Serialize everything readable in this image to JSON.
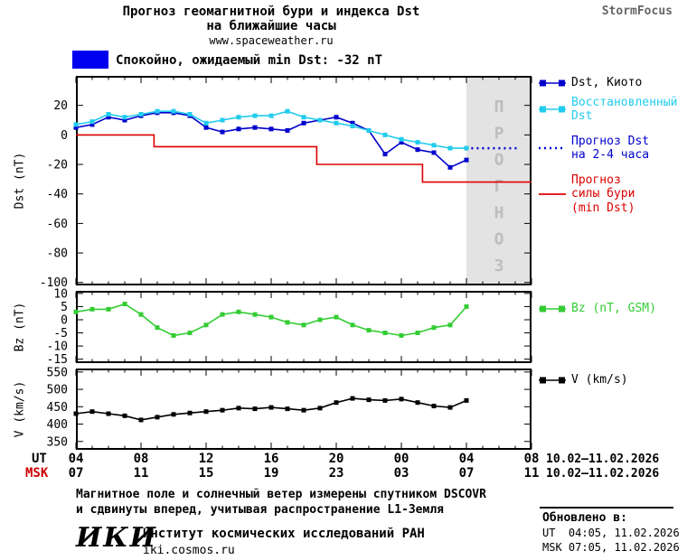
{
  "header": {
    "title_line1": "Прогноз геомагнитной бури и индекса Dst",
    "title_line2": "на ближайшие часы",
    "website": "www.spaceweather.ru",
    "brand": "StormFocus"
  },
  "status_banner": {
    "label": "Спокойно, ожидаемый min Dst: -32 nT"
  },
  "colors": {
    "banner_blue": "#0000f0",
    "dst_kyoto": "#0000cd",
    "dst_recon": "#22ccee",
    "dst_forecast": "#0000cd",
    "storm": "#dd0000",
    "bz": "#33cc33",
    "v": "#000000",
    "msk": "#cc0000",
    "band_gray": "#e3e3e3"
  },
  "legend": {
    "dst_kyoto": "Dst, Киото",
    "dst_reconstructed": "Восстановленный\nDst",
    "dst_forecast": "Прогноз Dst\nна 2-4 часа",
    "storm_forecast": "Прогноз\nсилы бури\n(min Dst)",
    "bz": "Bz (nT, GSM)",
    "v": "V (km/s)"
  },
  "axes": {
    "ut_label": "UT",
    "msk_label": "MSK",
    "ut_ticks": [
      "04",
      "08",
      "12",
      "16",
      "20",
      "00",
      "04",
      "08"
    ],
    "msk_ticks": [
      "07",
      "11",
      "15",
      "19",
      "23",
      "03",
      "07",
      "11"
    ],
    "ut_date_range": "10.02–11.02.2026",
    "msk_date_range": "10.02–11.02.2026"
  },
  "footnote": {
    "line1": "Магнитное поле и солнечный ветер измерены спутником DSCOVR",
    "line2": "и сдвинуты вперед, учитывая распространение L1-Земля"
  },
  "footer": {
    "logo": "ИКИ",
    "institute": "Институт космических исследований РАН",
    "website": "iki.cosmos.ru",
    "updated_label": "Обновлено в:",
    "updated_ut": "UT  04:05, 11.02.2026",
    "updated_msk": "MSK 07:05, 11.02.2026"
  },
  "chart_data": [
    {
      "id": "dst",
      "type": "line",
      "ylabel": "Dst (nT)",
      "ylim": [
        -102,
        40
      ],
      "yticks": [
        20,
        0,
        -20,
        -40,
        -60,
        -80,
        -100
      ],
      "xlim": [
        0,
        28
      ],
      "xticks": [
        0,
        4,
        8,
        12,
        16,
        20,
        24,
        28
      ],
      "x_unit": "hours since 04:00 UT 10.02.2026",
      "forecast_band": {
        "from": 24,
        "to": 28,
        "label": "ПРОГНОЗ"
      },
      "series": [
        {
          "name": "Dst, Киото",
          "color": "#0000cd",
          "marker": "square",
          "x": [
            0,
            1,
            2,
            3,
            4,
            5,
            6,
            7,
            8,
            9,
            10,
            11,
            12,
            13,
            14,
            15,
            16,
            17,
            18,
            19,
            20,
            21,
            22,
            23,
            24
          ],
          "values": [
            5,
            7,
            12,
            10,
            13,
            15,
            15,
            13,
            5,
            2,
            4,
            5,
            4,
            3,
            8,
            10,
            12,
            8,
            3,
            -13,
            -5,
            -10,
            -12,
            -22,
            -17
          ]
        },
        {
          "name": "Восстановленный Dst",
          "color": "#22ccee",
          "marker": "square",
          "x": [
            0,
            1,
            2,
            3,
            4,
            5,
            6,
            7,
            8,
            9,
            10,
            11,
            12,
            13,
            14,
            15,
            16,
            17,
            18,
            19,
            20,
            21,
            22,
            23,
            24
          ],
          "values": [
            7,
            9,
            14,
            12,
            14,
            16,
            16,
            14,
            8,
            10,
            12,
            13,
            13,
            16,
            12,
            10,
            8,
            6,
            3,
            0,
            -3,
            -5,
            -7,
            -9,
            -9
          ]
        },
        {
          "name": "Прогноз Dst на 2-4 часа",
          "color": "#0000cd",
          "dash": "2 4",
          "width": 2.5,
          "x": [
            24.3,
            27.3
          ],
          "values": [
            -9,
            -9
          ]
        },
        {
          "name": "Прогноз силы бури (min Dst)",
          "color": "#dd0000",
          "x": [
            0,
            4.8,
            4.8,
            14.8,
            14.8,
            21.3,
            21.3,
            28
          ],
          "values": [
            0,
            0,
            -8,
            -8,
            -20,
            -20,
            -32,
            -32
          ]
        }
      ]
    },
    {
      "id": "bz",
      "type": "line",
      "ylabel": "Bz (nT)",
      "ylim": [
        -16.5,
        11
      ],
      "yticks": [
        10,
        5,
        0,
        -5,
        -10,
        -15
      ],
      "xlim": [
        0,
        28
      ],
      "xticks": [
        0,
        4,
        8,
        12,
        16,
        20,
        24,
        28
      ],
      "series": [
        {
          "name": "Bz (nT, GSM)",
          "color": "#33cc33",
          "marker": "square",
          "x": [
            0,
            1,
            2,
            3,
            4,
            5,
            6,
            7,
            8,
            9,
            10,
            11,
            12,
            13,
            14,
            15,
            16,
            17,
            18,
            19,
            20,
            21,
            22,
            23,
            24
          ],
          "values": [
            3,
            4,
            4,
            6,
            2,
            -3,
            -6,
            -5,
            -2,
            2,
            3,
            2,
            1,
            -1,
            -2,
            0,
            1,
            -2,
            -4,
            -5,
            -6,
            -5,
            -3,
            -2,
            5
          ]
        }
      ]
    },
    {
      "id": "v",
      "type": "line",
      "ylabel": "V (km/s)",
      "ylim": [
        326,
        560
      ],
      "yticks": [
        550,
        500,
        450,
        400,
        350
      ],
      "xlim": [
        0,
        28
      ],
      "xticks": [
        0,
        4,
        8,
        12,
        16,
        20,
        24,
        28
      ],
      "series": [
        {
          "name": "V (km/s)",
          "color": "#000000",
          "marker": "square",
          "x": [
            0,
            1,
            2,
            3,
            4,
            5,
            6,
            7,
            8,
            9,
            10,
            11,
            12,
            13,
            14,
            15,
            16,
            17,
            18,
            19,
            20,
            21,
            22,
            23,
            24
          ],
          "values": [
            430,
            436,
            430,
            424,
            412,
            420,
            428,
            432,
            436,
            440,
            446,
            444,
            448,
            444,
            440,
            446,
            462,
            474,
            470,
            468,
            472,
            462,
            452,
            448,
            468
          ]
        }
      ]
    }
  ]
}
